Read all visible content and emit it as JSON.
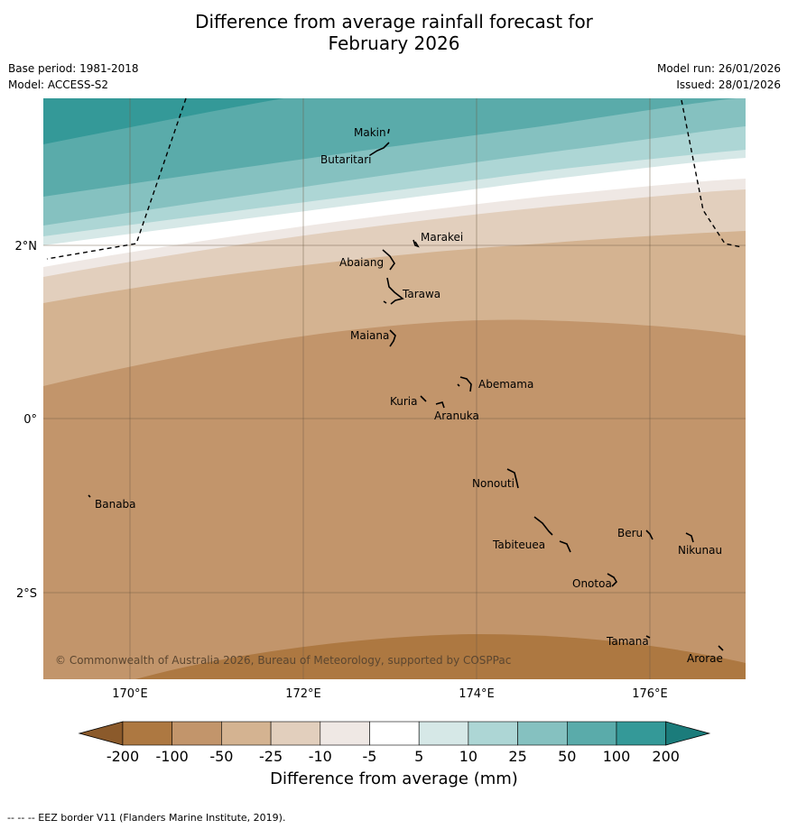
{
  "title_line1": "Difference from average rainfall forecast for",
  "title_line2": "February 2026",
  "meta": {
    "base_period": "Base period: 1981-2018",
    "model": "Model: ACCESS-S2",
    "model_run": "Model run: 26/01/2026",
    "issued": "Issued: 28/01/2026"
  },
  "axes": {
    "lat_labels": [
      "2°N",
      "0°",
      "2°S"
    ],
    "lon_labels": [
      "170°E",
      "172°E",
      "174°E",
      "176°E"
    ]
  },
  "places": [
    "Makin",
    "Butaritari",
    "Marakei",
    "Abaiang",
    "Tarawa",
    "Maiana",
    "Abemama",
    "Kuria",
    "Aranuka",
    "Nonouti",
    "Banaba",
    "Beru",
    "Nikunau",
    "Tabiteuea",
    "Onotoa",
    "Tamana",
    "Arorae"
  ],
  "copyright": "© Commonwealth of Australia 2026, Bureau of Meteorology, supported by COSPPac",
  "colorbar": {
    "ticks": [
      "-200",
      "-100",
      "-50",
      "-25",
      "-10",
      "-5",
      "5",
      "10",
      "25",
      "50",
      "100",
      "200"
    ],
    "colors": [
      "#8b5a2b",
      "#ad7841",
      "#c2956b",
      "#d4b391",
      "#e2cfbd",
      "#efe8e4",
      "#ffffff",
      "#d6e8e7",
      "#add6d5",
      "#85c1c0",
      "#5aabaa",
      "#349998",
      "#1b7c7b"
    ],
    "label": "Difference from average (mm)"
  },
  "footnote": "--  --  -- EEZ border V11 (Flanders Marine Institute, 2019)."
}
